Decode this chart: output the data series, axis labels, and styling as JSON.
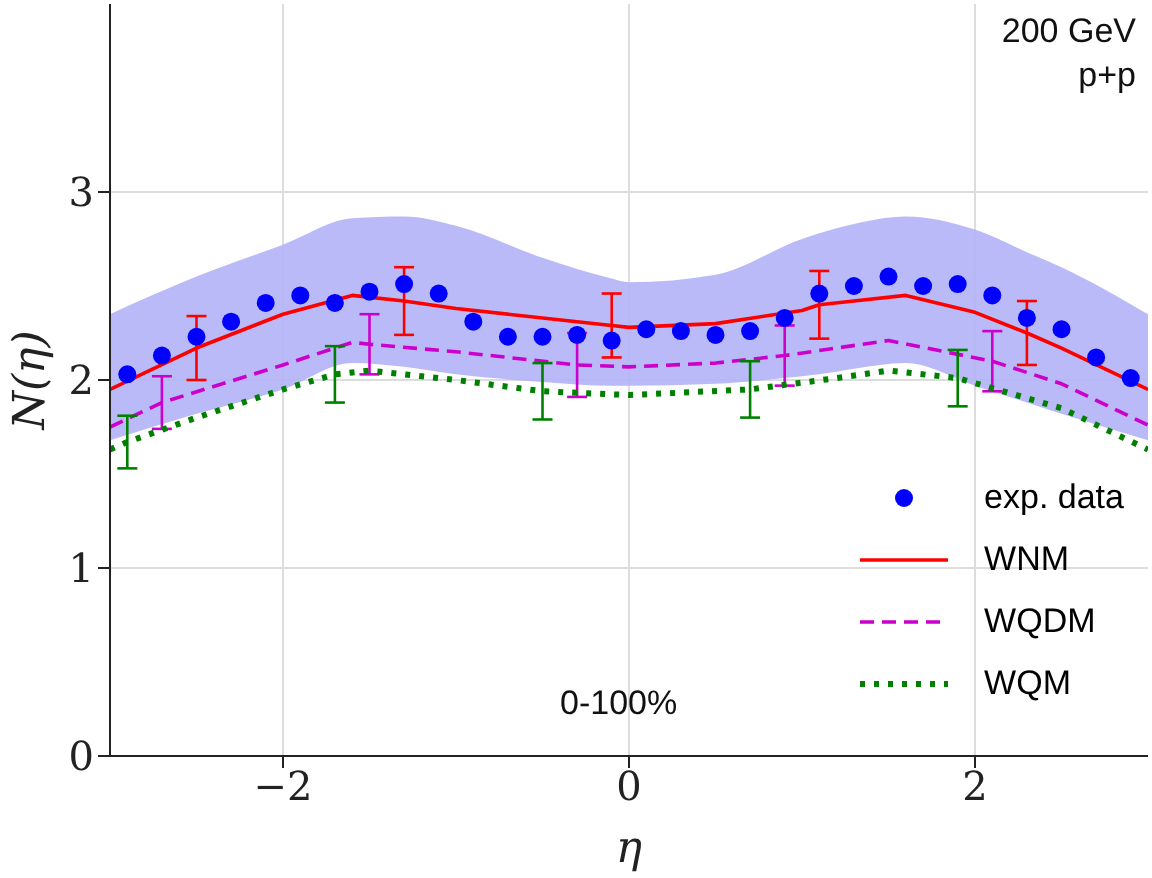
{
  "chart_data": {
    "type": "line",
    "xlabel": "η",
    "ylabel": "N(η)",
    "xlim": [
      -3,
      3
    ],
    "ylim": [
      0,
      4
    ],
    "xticks": [
      {
        "value": -2,
        "label": "−2"
      },
      0,
      2
    ],
    "yticks": [
      0,
      1,
      2,
      3
    ],
    "grid": true,
    "legend": "bottom right",
    "annotations": [
      "200 GeV",
      "p+p",
      "0-100%"
    ],
    "series": [
      {
        "name": "exp. data",
        "type": "scatter",
        "color": "#0000ff",
        "marker": "circle",
        "x": [
          -2.9,
          -2.7,
          -2.5,
          -2.3,
          -2.1,
          -1.9,
          -1.7,
          -1.5,
          -1.3,
          -1.1,
          -0.9,
          -0.7,
          -0.5,
          -0.3,
          -0.1,
          0.1,
          0.3,
          0.5,
          0.7,
          0.9,
          1.1,
          1.3,
          1.5,
          1.7,
          1.9,
          2.1,
          2.3,
          2.5,
          2.7,
          2.9
        ],
        "values": [
          2.03,
          2.13,
          2.23,
          2.31,
          2.41,
          2.45,
          2.41,
          2.47,
          2.51,
          2.46,
          2.31,
          2.23,
          2.23,
          2.24,
          2.21,
          2.27,
          2.26,
          2.24,
          2.26,
          2.33,
          2.46,
          2.5,
          2.55,
          2.5,
          2.51,
          2.45,
          2.33,
          2.27,
          2.12,
          2.01
        ]
      },
      {
        "name": "WNM",
        "color": "#ff0000",
        "line_style": "solid",
        "marker": "none",
        "x": [
          -3,
          -2.5,
          -2,
          -1.6,
          -1.3,
          -1,
          -0.5,
          -0.1,
          0,
          0.5,
          1,
          1.1,
          1.3,
          1.6,
          2,
          2.3,
          2.5,
          3
        ],
        "values": [
          1.95,
          2.17,
          2.35,
          2.45,
          2.42,
          2.38,
          2.33,
          2.29,
          2.28,
          2.3,
          2.37,
          2.4,
          2.42,
          2.45,
          2.36,
          2.25,
          2.17,
          1.95
        ],
        "errors": [
          null,
          0.17,
          null,
          null,
          0.18,
          null,
          null,
          0.17,
          null,
          null,
          null,
          0.18,
          null,
          null,
          null,
          0.17,
          null,
          null
        ],
        "lower": [
          1.68,
          1.82,
          1.95,
          2.09,
          2.07,
          2.03,
          1.99,
          1.97,
          1.97,
          1.98,
          2.02,
          2.03,
          2.06,
          2.09,
          1.97,
          1.88,
          1.82,
          1.68
        ],
        "upper": [
          2.35,
          2.55,
          2.72,
          2.86,
          2.87,
          2.82,
          2.65,
          2.54,
          2.52,
          2.56,
          2.75,
          2.78,
          2.83,
          2.87,
          2.8,
          2.68,
          2.6,
          2.35
        ]
      },
      {
        "name": "WQDM",
        "color": "#cc00cc",
        "line_style": "dashed",
        "marker": "none",
        "x": [
          -3,
          -2.7,
          -2,
          -1.6,
          -1.5,
          -1,
          -0.3,
          0,
          0.5,
          0.9,
          1.5,
          2.1,
          2.5,
          3
        ],
        "values": [
          1.75,
          1.88,
          2.08,
          2.2,
          2.19,
          2.15,
          2.08,
          2.07,
          2.09,
          2.13,
          2.21,
          2.1,
          1.98,
          1.76
        ],
        "errors": [
          null,
          0.14,
          null,
          null,
          0.16,
          null,
          0.17,
          null,
          null,
          0.16,
          null,
          0.16,
          null,
          null
        ]
      },
      {
        "name": "WQM",
        "color": "#008000",
        "line_style": "dotted",
        "marker": "none",
        "x": [
          -3,
          -2.9,
          -2.5,
          -2,
          -1.7,
          -1.5,
          -1,
          -0.5,
          0,
          0.7,
          1.2,
          1.5,
          1.9,
          2.5,
          3
        ],
        "values": [
          1.63,
          1.67,
          1.8,
          1.95,
          2.03,
          2.05,
          2,
          1.94,
          1.92,
          1.95,
          2.01,
          2.05,
          2.01,
          1.85,
          1.63
        ],
        "errors": [
          null,
          0.14,
          null,
          null,
          0.15,
          null,
          null,
          0.15,
          null,
          0.15,
          null,
          null,
          0.15,
          null,
          null
        ]
      }
    ]
  }
}
